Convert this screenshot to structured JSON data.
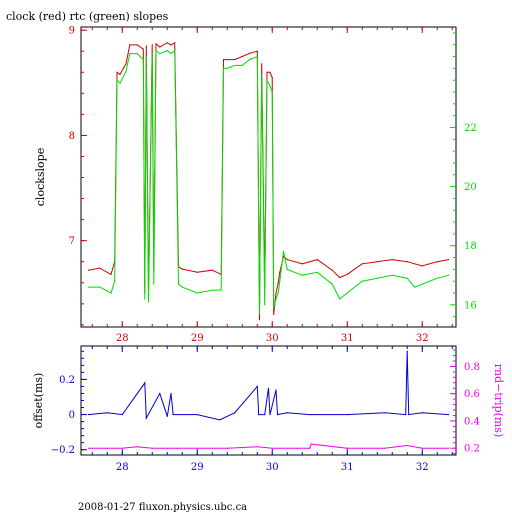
{
  "title": "clock (red) rtc (green) slopes",
  "footer": "2008-01-27 fluxon.physics.ubc.ca",
  "colors": {
    "red": "#cc0000",
    "green": "#00dd00",
    "blue": "#0000cc",
    "magenta": "#ee00ee",
    "frame": "#000000"
  },
  "chart_data": [
    {
      "type": "line",
      "title": "clock (red) rtc (green) slopes",
      "xlabel": "",
      "ylabel": "clockslope",
      "y2label": "",
      "xlim": [
        27.45,
        32.45
      ],
      "ylim": [
        6.18,
        9.03
      ],
      "y2lim": [
        15.25,
        25.4
      ],
      "xticks": [
        28,
        29,
        30,
        31,
        32
      ],
      "yticks": [
        7,
        8,
        9
      ],
      "y2ticks": [
        16,
        18,
        20,
        22
      ],
      "grid": false,
      "series": [
        {
          "color": "red",
          "axis": "left",
          "x": [
            27.55,
            27.7,
            27.85,
            27.9,
            27.93,
            27.97,
            28.05,
            28.1,
            28.2,
            28.28,
            28.3,
            28.32,
            28.35,
            28.4,
            28.42,
            28.45,
            28.5,
            28.6,
            28.65,
            28.7,
            28.75,
            28.8,
            29.0,
            29.2,
            29.32,
            29.35,
            29.4,
            29.5,
            29.6,
            29.7,
            29.8,
            29.83,
            29.86,
            29.9,
            29.93,
            29.97,
            30.0,
            30.02,
            30.05,
            30.08,
            30.1,
            30.15,
            30.2,
            30.4,
            30.6,
            30.8,
            30.9,
            31.0,
            31.2,
            31.4,
            31.6,
            31.8,
            31.9,
            32.0,
            32.2,
            32.35
          ],
          "values": [
            6.72,
            6.74,
            6.68,
            6.8,
            8.6,
            8.58,
            8.68,
            8.86,
            8.86,
            8.82,
            6.5,
            8.85,
            6.48,
            8.86,
            6.72,
            8.87,
            8.84,
            8.88,
            8.86,
            8.88,
            6.75,
            6.73,
            6.7,
            6.72,
            6.68,
            8.72,
            8.72,
            8.72,
            8.75,
            8.78,
            8.8,
            6.25,
            8.68,
            6.55,
            8.6,
            8.6,
            8.55,
            6.3,
            6.5,
            6.6,
            6.7,
            6.85,
            6.82,
            6.78,
            6.82,
            6.72,
            6.65,
            6.68,
            6.78,
            6.8,
            6.82,
            6.8,
            6.78,
            6.76,
            6.8,
            6.82
          ]
        },
        {
          "color": "green",
          "axis": "right",
          "x": [
            27.55,
            27.7,
            27.85,
            27.9,
            27.93,
            27.97,
            28.05,
            28.1,
            28.2,
            28.28,
            28.3,
            28.32,
            28.35,
            28.4,
            28.42,
            28.45,
            28.5,
            28.6,
            28.65,
            28.7,
            28.75,
            28.8,
            29.0,
            29.2,
            29.32,
            29.35,
            29.4,
            29.5,
            29.6,
            29.7,
            29.8,
            29.83,
            29.86,
            29.9,
            29.93,
            29.97,
            30.0,
            30.02,
            30.05,
            30.08,
            30.1,
            30.15,
            30.2,
            30.4,
            30.6,
            30.8,
            30.9,
            31.0,
            31.2,
            31.4,
            31.6,
            31.8,
            31.9,
            32.0,
            32.2,
            32.35
          ],
          "values": [
            16.6,
            16.6,
            16.4,
            16.8,
            23.6,
            23.5,
            23.9,
            24.5,
            24.5,
            24.3,
            16.2,
            24.4,
            16.1,
            24.5,
            16.7,
            24.6,
            24.5,
            24.6,
            24.5,
            24.6,
            16.7,
            16.6,
            16.4,
            16.5,
            16.5,
            24.0,
            24.0,
            24.1,
            24.1,
            24.3,
            24.4,
            15.7,
            23.8,
            16.0,
            23.6,
            23.4,
            23.2,
            15.9,
            16.2,
            16.4,
            16.8,
            17.8,
            17.2,
            17.0,
            17.1,
            16.7,
            16.2,
            16.4,
            16.8,
            16.9,
            17.0,
            16.9,
            16.6,
            16.7,
            16.9,
            17.0
          ]
        }
      ]
    },
    {
      "type": "line",
      "title": "",
      "xlabel": "",
      "ylabel": "offset(ms)",
      "y2label": "rnd−trip(ms)",
      "xlim": [
        27.45,
        32.45
      ],
      "ylim": [
        -0.23,
        0.39
      ],
      "y2lim": [
        0.15,
        0.95
      ],
      "xticks": [
        28,
        29,
        30,
        31,
        32
      ],
      "yticks": [
        -0.2,
        0,
        0.2
      ],
      "y2ticks": [
        0.2,
        0.4,
        0.6,
        0.8
      ],
      "xticklabels": [
        "28",
        "29",
        "30",
        "31",
        "32"
      ],
      "yticklabels": [
        "−0.2",
        "0",
        "0.2"
      ],
      "y2ticklabels": [
        "0.2",
        "0.4",
        "0.6",
        "0.8"
      ],
      "grid": false,
      "series": [
        {
          "color": "blue",
          "axis": "left",
          "x": [
            27.55,
            27.8,
            28.0,
            28.3,
            28.32,
            28.5,
            28.6,
            28.65,
            28.68,
            29.0,
            29.3,
            29.5,
            29.8,
            29.82,
            29.9,
            29.95,
            29.97,
            30.05,
            30.07,
            30.2,
            30.5,
            31.0,
            31.5,
            31.78,
            31.8,
            31.82,
            32.0,
            32.35
          ],
          "values": [
            0.0,
            0.01,
            0.0,
            0.18,
            -0.02,
            0.12,
            -0.01,
            0.12,
            0.0,
            0.0,
            -0.03,
            0.01,
            0.16,
            0.0,
            0.0,
            0.15,
            0.0,
            0.14,
            0.0,
            0.01,
            0.0,
            0.0,
            0.01,
            0.0,
            0.36,
            0.0,
            0.01,
            0.0
          ]
        },
        {
          "color": "magenta",
          "axis": "right",
          "x": [
            27.55,
            27.8,
            28.0,
            28.2,
            28.4,
            28.6,
            29.0,
            29.4,
            29.8,
            30.0,
            30.5,
            30.52,
            31.0,
            31.5,
            31.8,
            32.0,
            32.35
          ],
          "values": [
            0.2,
            0.2,
            0.2,
            0.21,
            0.2,
            0.2,
            0.2,
            0.2,
            0.21,
            0.2,
            0.2,
            0.23,
            0.2,
            0.2,
            0.22,
            0.2,
            0.2
          ]
        }
      ]
    }
  ]
}
